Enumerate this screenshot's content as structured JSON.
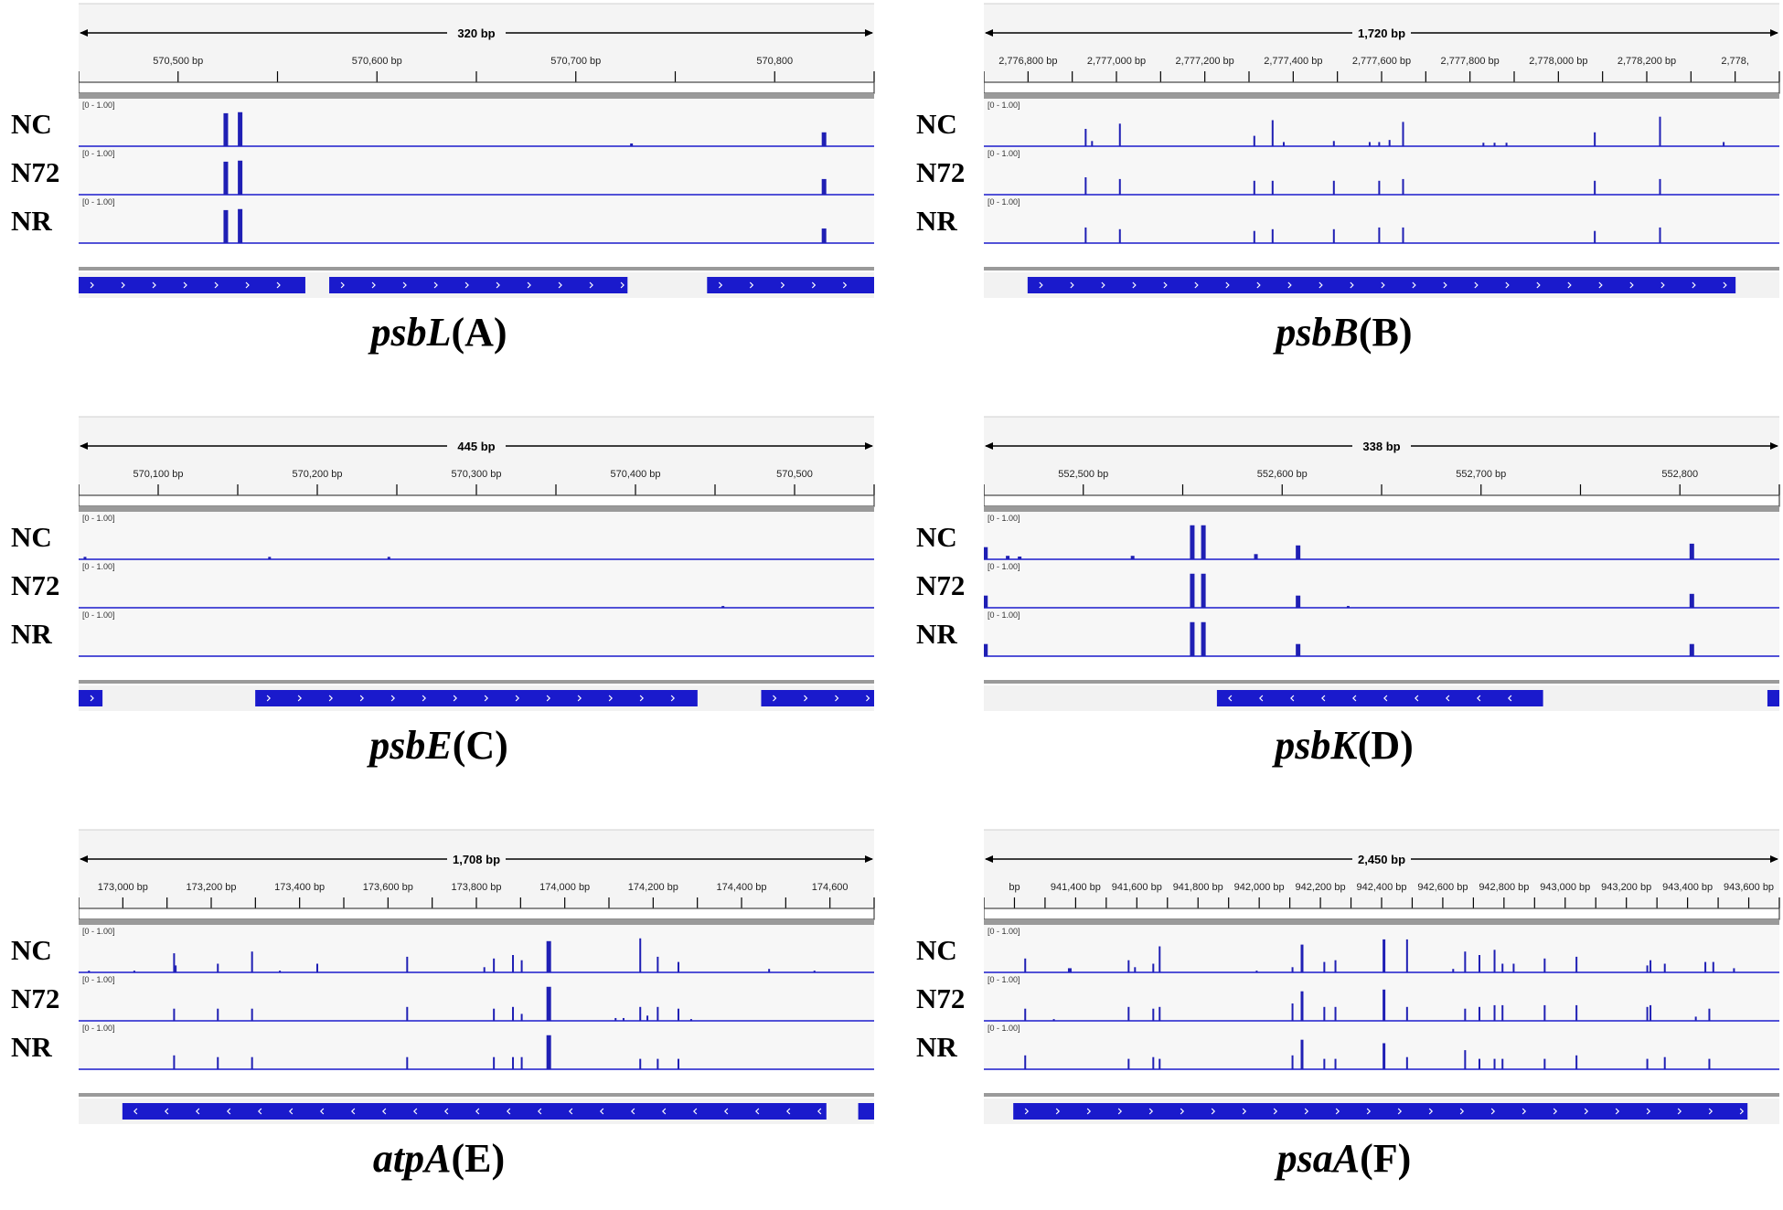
{
  "figure": {
    "track_names": [
      "NC",
      "N72",
      "NR"
    ],
    "colors": {
      "accent": "#1f1fb4",
      "gene": "#1a1acc",
      "line": "#1a1acc",
      "ruler": "#000000"
    },
    "panels": [
      {
        "id": "A",
        "gene": "psbL",
        "letter": "(A)",
        "span_label": "320 bp",
        "ticks": [
          "570,500 bp",
          "570,600 bp",
          "570,700 bp",
          "570,800"
        ],
        "scale_label": "[0 - 1.00]",
        "strand": "forward",
        "gene_blocks": [
          [
            0,
            0.285
          ],
          [
            0.315,
            0.69
          ],
          [
            0.79,
            1.0
          ]
        ],
        "peaks": [
          [
            [
              0.185,
              0.95,
              5
            ],
            [
              0.203,
              0.98,
              5
            ],
            [
              0.695,
              0.08,
              3
            ],
            [
              0.937,
              0.4,
              5
            ]
          ],
          [
            [
              0.185,
              0.95,
              5
            ],
            [
              0.203,
              0.98,
              5
            ],
            [
              0.937,
              0.45,
              5
            ]
          ],
          [
            [
              0.185,
              0.95,
              5
            ],
            [
              0.203,
              0.98,
              5
            ],
            [
              0.937,
              0.42,
              5
            ]
          ]
        ]
      },
      {
        "id": "B",
        "gene": "psbB",
        "letter": "(B)",
        "span_label": "1,720 bp",
        "ticks": [
          "2,776,800 bp",
          "2,777,000 bp",
          "2,777,200 bp",
          "2,777,400 bp",
          "2,777,600 bp",
          "2,777,800 bp",
          "2,778,000 bp",
          "2,778,200 bp",
          "2,778,"
        ],
        "scale_label": "[0 - 1.00]",
        "strand": "forward",
        "gene_blocks": [
          [
            0.055,
            0.945
          ]
        ],
        "peaks": [
          [
            [
              0.128,
              0.5,
              2
            ],
            [
              0.136,
              0.15,
              2
            ],
            [
              0.171,
              0.65,
              2
            ],
            [
              0.34,
              0.3,
              2
            ],
            [
              0.363,
              0.75,
              2
            ],
            [
              0.377,
              0.12,
              2
            ],
            [
              0.44,
              0.15,
              2
            ],
            [
              0.485,
              0.12,
              2
            ],
            [
              0.497,
              0.12,
              2
            ],
            [
              0.51,
              0.18,
              2
            ],
            [
              0.527,
              0.7,
              2
            ],
            [
              0.628,
              0.1,
              2
            ],
            [
              0.642,
              0.1,
              2
            ],
            [
              0.657,
              0.1,
              2
            ],
            [
              0.768,
              0.4,
              2
            ],
            [
              0.85,
              0.85,
              2
            ],
            [
              0.93,
              0.12,
              2
            ]
          ],
          [
            [
              0.128,
              0.5,
              2
            ],
            [
              0.171,
              0.45,
              2
            ],
            [
              0.34,
              0.4,
              2
            ],
            [
              0.363,
              0.4,
              2
            ],
            [
              0.44,
              0.4,
              2
            ],
            [
              0.497,
              0.4,
              2
            ],
            [
              0.527,
              0.45,
              2
            ],
            [
              0.768,
              0.4,
              2
            ],
            [
              0.85,
              0.45,
              2
            ]
          ],
          [
            [
              0.128,
              0.45,
              2
            ],
            [
              0.171,
              0.4,
              2
            ],
            [
              0.34,
              0.35,
              2
            ],
            [
              0.363,
              0.4,
              2
            ],
            [
              0.44,
              0.4,
              2
            ],
            [
              0.497,
              0.45,
              2
            ],
            [
              0.527,
              0.45,
              2
            ],
            [
              0.768,
              0.35,
              2
            ],
            [
              0.85,
              0.45,
              2
            ]
          ]
        ]
      },
      {
        "id": "C",
        "gene": "psbE",
        "letter": "(C)",
        "span_label": "445 bp",
        "ticks": [
          "570,100 bp",
          "570,200 bp",
          "570,300 bp",
          "570,400 bp",
          "570,500"
        ],
        "scale_label": "[0 - 1.00]",
        "strand": "forward",
        "gene_blocks": [
          [
            0,
            0.03
          ],
          [
            0.222,
            0.778
          ],
          [
            0.858,
            1.0
          ]
        ],
        "peaks": [
          [
            [
              0.008,
              0.07,
              3
            ],
            [
              0.24,
              0.07,
              3
            ],
            [
              0.39,
              0.07,
              3
            ]
          ],
          [
            [
              0.81,
              0.05,
              3
            ]
          ],
          []
        ]
      },
      {
        "id": "D",
        "gene": "psbK",
        "letter": "(D)",
        "span_label": "338 bp",
        "ticks": [
          "552,500 bp",
          "552,600 bp",
          "552,700 bp",
          "552,800"
        ],
        "scale_label": "[0 - 1.00]",
        "strand": "reverse",
        "gene_blocks": [
          [
            0.293,
            0.703
          ],
          [
            0.985,
            1.0
          ]
        ],
        "peaks": [
          [
            [
              0.002,
              0.35,
              5
            ],
            [
              0.03,
              0.1,
              4
            ],
            [
              0.045,
              0.08,
              4
            ],
            [
              0.187,
              0.1,
              4
            ],
            [
              0.262,
              0.98,
              5
            ],
            [
              0.276,
              0.98,
              5
            ],
            [
              0.342,
              0.15,
              4
            ],
            [
              0.395,
              0.4,
              5
            ],
            [
              0.89,
              0.45,
              5
            ]
          ],
          [
            [
              0.002,
              0.35,
              5
            ],
            [
              0.262,
              0.98,
              5
            ],
            [
              0.276,
              0.98,
              5
            ],
            [
              0.395,
              0.35,
              5
            ],
            [
              0.458,
              0.05,
              3
            ],
            [
              0.89,
              0.4,
              5
            ]
          ],
          [
            [
              0.002,
              0.35,
              5
            ],
            [
              0.262,
              0.98,
              5
            ],
            [
              0.276,
              0.98,
              5
            ],
            [
              0.395,
              0.35,
              5
            ],
            [
              0.89,
              0.35,
              5
            ]
          ]
        ]
      },
      {
        "id": "E",
        "gene": "atpA",
        "letter": "(E)",
        "span_label": "1,708 bp",
        "ticks": [
          "173,000 bp",
          "173,200 bp",
          "173,400 bp",
          "173,600 bp",
          "173,800 bp",
          "174,000 bp",
          "174,200 bp",
          "174,400 bp",
          "174,600"
        ],
        "scale_label": "[0 - 1.00]",
        "strand": "reverse",
        "gene_blocks": [
          [
            0.055,
            0.94
          ],
          [
            0.98,
            1.0
          ]
        ],
        "peaks": [
          [
            [
              0.013,
              0.05,
              2
            ],
            [
              0.07,
              0.05,
              2
            ],
            [
              0.12,
              0.55,
              2
            ],
            [
              0.122,
              0.2,
              2
            ],
            [
              0.175,
              0.25,
              2
            ],
            [
              0.218,
              0.6,
              2
            ],
            [
              0.253,
              0.05,
              2
            ],
            [
              0.3,
              0.25,
              2
            ],
            [
              0.413,
              0.45,
              2
            ],
            [
              0.51,
              0.15,
              2
            ],
            [
              0.522,
              0.4,
              2
            ],
            [
              0.546,
              0.5,
              2
            ],
            [
              0.557,
              0.35,
              2
            ],
            [
              0.591,
              0.9,
              5
            ],
            [
              0.706,
              0.98,
              2
            ],
            [
              0.728,
              0.45,
              2
            ],
            [
              0.754,
              0.3,
              2
            ],
            [
              0.868,
              0.1,
              2
            ],
            [
              0.925,
              0.05,
              2
            ]
          ],
          [
            [
              0.12,
              0.35,
              2
            ],
            [
              0.175,
              0.35,
              2
            ],
            [
              0.218,
              0.35,
              2
            ],
            [
              0.413,
              0.4,
              2
            ],
            [
              0.522,
              0.35,
              2
            ],
            [
              0.546,
              0.4,
              2
            ],
            [
              0.557,
              0.2,
              2
            ],
            [
              0.591,
              0.98,
              5
            ],
            [
              0.675,
              0.08,
              2
            ],
            [
              0.685,
              0.08,
              2
            ],
            [
              0.706,
              0.4,
              2
            ],
            [
              0.715,
              0.15,
              2
            ],
            [
              0.728,
              0.4,
              2
            ],
            [
              0.754,
              0.35,
              2
            ],
            [
              0.77,
              0.05,
              2
            ]
          ],
          [
            [
              0.12,
              0.4,
              2
            ],
            [
              0.175,
              0.35,
              2
            ],
            [
              0.218,
              0.35,
              2
            ],
            [
              0.413,
              0.35,
              2
            ],
            [
              0.522,
              0.35,
              2
            ],
            [
              0.546,
              0.35,
              2
            ],
            [
              0.557,
              0.35,
              2
            ],
            [
              0.591,
              0.98,
              5
            ],
            [
              0.706,
              0.3,
              2
            ],
            [
              0.728,
              0.3,
              2
            ],
            [
              0.754,
              0.3,
              2
            ]
          ]
        ]
      },
      {
        "id": "F",
        "gene": "psaA",
        "letter": "(F)",
        "span_label": "2,450 bp",
        "ticks": [
          "bp",
          "941,400 bp",
          "941,600 bp",
          "941,800 bp",
          "942,000 bp",
          "942,200 bp",
          "942,400 bp",
          "942,600 bp",
          "942,800 bp",
          "943,000 bp",
          "943,200 bp",
          "943,400 bp",
          "943,600 bp"
        ],
        "scale_label": "[0 - 1.00]",
        "strand": "forward",
        "gene_blocks": [
          [
            0.037,
            0.96
          ]
        ],
        "peaks": [
          [
            [
              0.052,
              0.4,
              2
            ],
            [
              0.108,
              0.12,
              4
            ],
            [
              0.182,
              0.35,
              2
            ],
            [
              0.19,
              0.15,
              2
            ],
            [
              0.213,
              0.25,
              2
            ],
            [
              0.221,
              0.75,
              2
            ],
            [
              0.343,
              0.05,
              2
            ],
            [
              0.388,
              0.15,
              2
            ],
            [
              0.4,
              0.8,
              3
            ],
            [
              0.428,
              0.3,
              2
            ],
            [
              0.442,
              0.35,
              2
            ],
            [
              0.503,
              0.95,
              3
            ],
            [
              0.532,
              0.95,
              2
            ],
            [
              0.59,
              0.1,
              2
            ],
            [
              0.605,
              0.6,
              2
            ],
            [
              0.623,
              0.5,
              2
            ],
            [
              0.642,
              0.65,
              2
            ],
            [
              0.652,
              0.25,
              2
            ],
            [
              0.666,
              0.25,
              2
            ],
            [
              0.705,
              0.4,
              2
            ],
            [
              0.745,
              0.45,
              2
            ],
            [
              0.834,
              0.2,
              2
            ],
            [
              0.838,
              0.35,
              2
            ],
            [
              0.856,
              0.25,
              2
            ],
            [
              0.907,
              0.3,
              2
            ],
            [
              0.917,
              0.3,
              2
            ],
            [
              0.943,
              0.12,
              2
            ]
          ],
          [
            [
              0.052,
              0.35,
              2
            ],
            [
              0.088,
              0.05,
              2
            ],
            [
              0.182,
              0.4,
              2
            ],
            [
              0.213,
              0.35,
              2
            ],
            [
              0.221,
              0.4,
              2
            ],
            [
              0.388,
              0.5,
              2
            ],
            [
              0.4,
              0.85,
              3
            ],
            [
              0.428,
              0.4,
              2
            ],
            [
              0.442,
              0.4,
              2
            ],
            [
              0.503,
              0.9,
              3
            ],
            [
              0.532,
              0.4,
              2
            ],
            [
              0.605,
              0.35,
              2
            ],
            [
              0.623,
              0.4,
              2
            ],
            [
              0.642,
              0.45,
              2
            ],
            [
              0.652,
              0.45,
              2
            ],
            [
              0.705,
              0.45,
              2
            ],
            [
              0.745,
              0.45,
              2
            ],
            [
              0.834,
              0.4,
              2
            ],
            [
              0.838,
              0.45,
              2
            ],
            [
              0.895,
              0.12,
              2
            ],
            [
              0.912,
              0.35,
              2
            ]
          ],
          [
            [
              0.052,
              0.4,
              2
            ],
            [
              0.182,
              0.3,
              2
            ],
            [
              0.213,
              0.35,
              2
            ],
            [
              0.221,
              0.3,
              2
            ],
            [
              0.388,
              0.4,
              2
            ],
            [
              0.4,
              0.85,
              3
            ],
            [
              0.428,
              0.3,
              2
            ],
            [
              0.442,
              0.3,
              2
            ],
            [
              0.503,
              0.75,
              3
            ],
            [
              0.532,
              0.35,
              2
            ],
            [
              0.605,
              0.55,
              2
            ],
            [
              0.623,
              0.3,
              2
            ],
            [
              0.642,
              0.3,
              2
            ],
            [
              0.652,
              0.3,
              2
            ],
            [
              0.705,
              0.3,
              2
            ],
            [
              0.745,
              0.4,
              2
            ],
            [
              0.834,
              0.3,
              2
            ],
            [
              0.856,
              0.35,
              2
            ],
            [
              0.912,
              0.3,
              2
            ]
          ]
        ]
      }
    ]
  }
}
